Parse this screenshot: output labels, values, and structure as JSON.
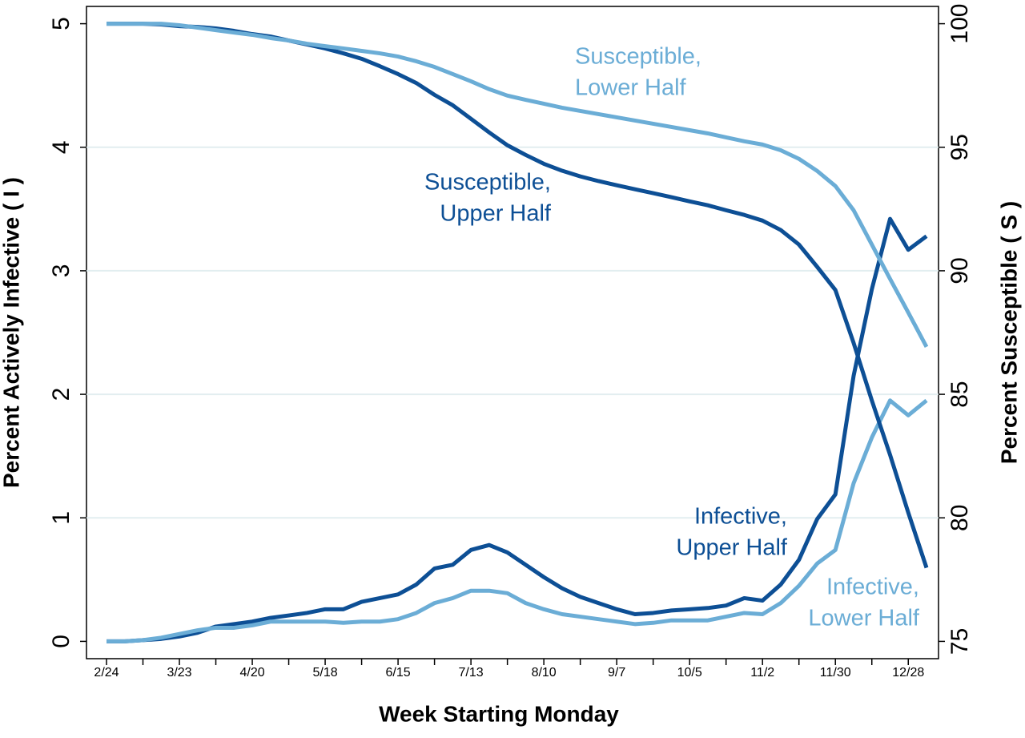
{
  "chart_data": {
    "type": "line",
    "xlabel": "Week Starting Monday",
    "ylabel": "Percent Actively Infective ( I )",
    "y2label": "Percent Susceptible ( S )",
    "categories": [
      "2/24",
      null,
      null,
      null,
      "3/23",
      null,
      null,
      null,
      "4/20",
      null,
      null,
      null,
      "5/18",
      null,
      null,
      null,
      "6/15",
      null,
      null,
      null,
      "7/13",
      null,
      null,
      null,
      "8/10",
      null,
      null,
      null,
      "9/7",
      null,
      null,
      null,
      "10/5",
      null,
      null,
      null,
      "11/2",
      null,
      null,
      null,
      "11/30",
      null,
      null,
      null,
      "12/28",
      null
    ],
    "ylim": [
      -0.14,
      5.14
    ],
    "yticks": [
      0,
      1,
      2,
      3,
      4,
      5
    ],
    "y2lim": [
      74.3,
      100.7
    ],
    "y2ticks": [
      75,
      80,
      85,
      90,
      95,
      100
    ],
    "grid": true,
    "series": [
      {
        "name": "Infective, Upper Half",
        "color": "#0d4f95",
        "values": [
          0,
          0,
          0.01,
          0.02,
          0.04,
          0.07,
          0.12,
          0.14,
          0.16,
          0.19,
          0.21,
          0.23,
          0.26,
          0.26,
          0.32,
          0.35,
          0.38,
          0.46,
          0.59,
          0.62,
          0.74,
          0.78,
          0.72,
          0.62,
          0.52,
          0.43,
          0.36,
          0.31,
          0.26,
          0.22,
          0.23,
          0.25,
          0.26,
          0.27,
          0.29,
          0.35,
          0.33,
          0.46,
          0.66,
          0.99,
          1.19,
          2.15,
          2.85,
          3.42,
          3.17,
          3.28
        ]
      },
      {
        "name": "Infective, Lower Half",
        "color": "#6badd6",
        "values": [
          0,
          0,
          0.01,
          0.03,
          0.06,
          0.09,
          0.11,
          0.11,
          0.13,
          0.16,
          0.16,
          0.16,
          0.16,
          0.15,
          0.16,
          0.16,
          0.18,
          0.23,
          0.31,
          0.35,
          0.41,
          0.41,
          0.39,
          0.31,
          0.26,
          0.22,
          0.2,
          0.18,
          0.16,
          0.14,
          0.15,
          0.17,
          0.17,
          0.17,
          0.2,
          0.23,
          0.22,
          0.31,
          0.45,
          0.63,
          0.74,
          1.28,
          1.65,
          1.95,
          1.83,
          1.95
        ]
      },
      {
        "name": "Susceptible, Upper Half",
        "color": "#0d4f95",
        "axis": "y2",
        "values": [
          100,
          100,
          100,
          99.97,
          99.9,
          99.87,
          99.81,
          99.71,
          99.58,
          99.48,
          99.32,
          99.16,
          99.0,
          98.8,
          98.58,
          98.28,
          97.96,
          97.6,
          97.12,
          96.7,
          96.15,
          95.6,
          95.08,
          94.69,
          94.33,
          94.05,
          93.82,
          93.63,
          93.46,
          93.3,
          93.14,
          92.98,
          92.81,
          92.65,
          92.45,
          92.26,
          92.03,
          91.65,
          91.06,
          90.16,
          89.22,
          87.08,
          84.75,
          82.55,
          80.21,
          77.98
        ]
      },
      {
        "name": "Susceptible, Lower Half",
        "color": "#6badd6",
        "axis": "y2",
        "values": [
          100,
          100,
          100,
          100,
          99.94,
          99.84,
          99.74,
          99.64,
          99.55,
          99.42,
          99.32,
          99.19,
          99.09,
          99.0,
          98.9,
          98.8,
          98.67,
          98.48,
          98.25,
          97.96,
          97.67,
          97.35,
          97.09,
          96.92,
          96.76,
          96.6,
          96.47,
          96.34,
          96.21,
          96.08,
          95.95,
          95.82,
          95.69,
          95.56,
          95.4,
          95.24,
          95.11,
          94.88,
          94.53,
          94.04,
          93.43,
          92.45,
          91.06,
          89.67,
          88.31,
          86.92
        ]
      }
    ],
    "annotations": [
      {
        "lines": [
          "Susceptible,",
          "Lower Half"
        ],
        "color": "#6badd6"
      },
      {
        "lines": [
          "Susceptible,",
          "Upper Half"
        ],
        "color": "#0d4f95"
      },
      {
        "lines": [
          "Infective,",
          "Upper Half"
        ],
        "color": "#0d4f95"
      },
      {
        "lines": [
          "Infective,",
          "Lower Half"
        ],
        "color": "#6badd6"
      }
    ]
  }
}
